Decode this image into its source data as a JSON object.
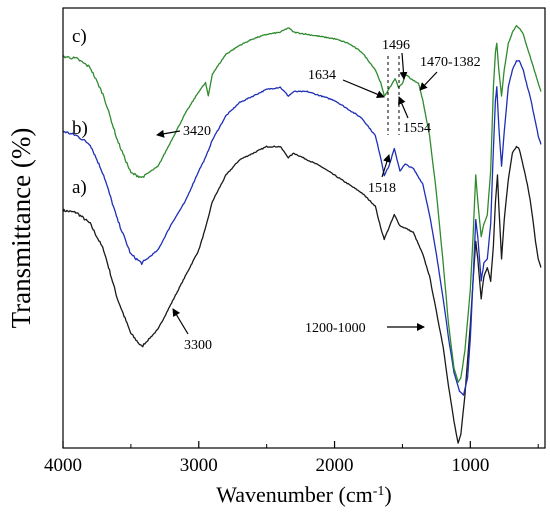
{
  "chart_data": {
    "type": "line",
    "title": "",
    "xlabel": "Wavenumber (cm",
    "xlabel_sup": "-1",
    "xlabel_close": ")",
    "ylabel": "Transmittance (%)",
    "xlim": [
      4000,
      450
    ],
    "x_reversed": true,
    "xticks": [
      {
        "value": 4000,
        "label": "4000"
      },
      {
        "value": 3000,
        "label": "3000"
      },
      {
        "value": 2000,
        "label": "2000"
      },
      {
        "value": 1000,
        "label": "1000"
      }
    ],
    "y_ticks_shown": false,
    "colors": {
      "a": "#1a1a1a",
      "b": "#1f2fb5",
      "c": "#2e8b2e"
    },
    "series": [
      {
        "name": "a)",
        "label": "a)",
        "color": "#1a1a1a",
        "points": [
          [
            4000,
            0.54
          ],
          [
            3900,
            0.535
          ],
          [
            3800,
            0.51
          ],
          [
            3700,
            0.45
          ],
          [
            3600,
            0.34
          ],
          [
            3500,
            0.26
          ],
          [
            3420,
            0.23
          ],
          [
            3300,
            0.27
          ],
          [
            3200,
            0.33
          ],
          [
            3100,
            0.39
          ],
          [
            3000,
            0.45
          ],
          [
            2950,
            0.5
          ],
          [
            2900,
            0.56
          ],
          [
            2800,
            0.62
          ],
          [
            2700,
            0.655
          ],
          [
            2600,
            0.67
          ],
          [
            2500,
            0.685
          ],
          [
            2400,
            0.685
          ],
          [
            2340,
            0.66
          ],
          [
            2300,
            0.67
          ],
          [
            2200,
            0.655
          ],
          [
            2100,
            0.64
          ],
          [
            2000,
            0.62
          ],
          [
            1900,
            0.6
          ],
          [
            1800,
            0.58
          ],
          [
            1700,
            0.55
          ],
          [
            1660,
            0.5
          ],
          [
            1634,
            0.475
          ],
          [
            1600,
            0.5
          ],
          [
            1560,
            0.53
          ],
          [
            1518,
            0.505
          ],
          [
            1480,
            0.5
          ],
          [
            1420,
            0.49
          ],
          [
            1350,
            0.44
          ],
          [
            1300,
            0.39
          ],
          [
            1250,
            0.31
          ],
          [
            1200,
            0.23
          ],
          [
            1160,
            0.14
          ],
          [
            1120,
            0.06
          ],
          [
            1090,
            0.01
          ],
          [
            1070,
            0.03
          ],
          [
            1040,
            0.12
          ],
          [
            1000,
            0.28
          ],
          [
            980,
            0.38
          ],
          [
            960,
            0.47
          ],
          [
            945,
            0.43
          ],
          [
            920,
            0.34
          ],
          [
            900,
            0.39
          ],
          [
            875,
            0.41
          ],
          [
            850,
            0.38
          ],
          [
            830,
            0.46
          ],
          [
            815,
            0.56
          ],
          [
            800,
            0.62
          ],
          [
            790,
            0.55
          ],
          [
            770,
            0.43
          ],
          [
            750,
            0.52
          ],
          [
            720,
            0.61
          ],
          [
            690,
            0.67
          ],
          [
            660,
            0.685
          ],
          [
            640,
            0.68
          ],
          [
            610,
            0.64
          ],
          [
            580,
            0.6
          ],
          [
            560,
            0.565
          ],
          [
            540,
            0.52
          ],
          [
            520,
            0.47
          ],
          [
            500,
            0.43
          ],
          [
            480,
            0.41
          ]
        ]
      },
      {
        "name": "b)",
        "label": "b)",
        "color": "#1f2fb5",
        "points": [
          [
            4000,
            0.72
          ],
          [
            3900,
            0.71
          ],
          [
            3800,
            0.69
          ],
          [
            3700,
            0.62
          ],
          [
            3600,
            0.52
          ],
          [
            3500,
            0.44
          ],
          [
            3420,
            0.42
          ],
          [
            3300,
            0.45
          ],
          [
            3200,
            0.51
          ],
          [
            3100,
            0.56
          ],
          [
            3000,
            0.63
          ],
          [
            2950,
            0.66
          ],
          [
            2900,
            0.7
          ],
          [
            2800,
            0.755
          ],
          [
            2700,
            0.785
          ],
          [
            2600,
            0.8
          ],
          [
            2500,
            0.815
          ],
          [
            2400,
            0.82
          ],
          [
            2340,
            0.8
          ],
          [
            2300,
            0.81
          ],
          [
            2200,
            0.81
          ],
          [
            2100,
            0.8
          ],
          [
            2000,
            0.79
          ],
          [
            1900,
            0.77
          ],
          [
            1800,
            0.75
          ],
          [
            1700,
            0.71
          ],
          [
            1660,
            0.66
          ],
          [
            1634,
            0.62
          ],
          [
            1600,
            0.64
          ],
          [
            1560,
            0.68
          ],
          [
            1518,
            0.63
          ],
          [
            1480,
            0.645
          ],
          [
            1420,
            0.635
          ],
          [
            1350,
            0.6
          ],
          [
            1300,
            0.53
          ],
          [
            1250,
            0.44
          ],
          [
            1200,
            0.34
          ],
          [
            1160,
            0.25
          ],
          [
            1120,
            0.17
          ],
          [
            1080,
            0.13
          ],
          [
            1050,
            0.12
          ],
          [
            1020,
            0.16
          ],
          [
            1000,
            0.25
          ],
          [
            980,
            0.38
          ],
          [
            960,
            0.52
          ],
          [
            945,
            0.48
          ],
          [
            920,
            0.38
          ],
          [
            900,
            0.42
          ],
          [
            875,
            0.43
          ],
          [
            850,
            0.51
          ],
          [
            830,
            0.68
          ],
          [
            815,
            0.79
          ],
          [
            805,
            0.82
          ],
          [
            790,
            0.73
          ],
          [
            770,
            0.64
          ],
          [
            750,
            0.72
          ],
          [
            720,
            0.82
          ],
          [
            690,
            0.86
          ],
          [
            660,
            0.88
          ],
          [
            640,
            0.88
          ],
          [
            610,
            0.86
          ],
          [
            580,
            0.82
          ],
          [
            560,
            0.8
          ],
          [
            540,
            0.77
          ],
          [
            520,
            0.74
          ],
          [
            500,
            0.71
          ],
          [
            480,
            0.69
          ]
        ]
      },
      {
        "name": "c)",
        "label": "c)",
        "color": "#2e8b2e",
        "points": [
          [
            4000,
            0.89
          ],
          [
            3900,
            0.885
          ],
          [
            3800,
            0.865
          ],
          [
            3700,
            0.8
          ],
          [
            3600,
            0.7
          ],
          [
            3500,
            0.625
          ],
          [
            3420,
            0.615
          ],
          [
            3300,
            0.64
          ],
          [
            3200,
            0.7
          ],
          [
            3100,
            0.76
          ],
          [
            3000,
            0.81
          ],
          [
            2950,
            0.83
          ],
          [
            2930,
            0.8
          ],
          [
            2900,
            0.85
          ],
          [
            2800,
            0.895
          ],
          [
            2700,
            0.915
          ],
          [
            2600,
            0.93
          ],
          [
            2500,
            0.94
          ],
          [
            2400,
            0.945
          ],
          [
            2340,
            0.955
          ],
          [
            2300,
            0.945
          ],
          [
            2200,
            0.94
          ],
          [
            2100,
            0.935
          ],
          [
            2000,
            0.93
          ],
          [
            1900,
            0.92
          ],
          [
            1800,
            0.9
          ],
          [
            1700,
            0.86
          ],
          [
            1660,
            0.83
          ],
          [
            1634,
            0.8
          ],
          [
            1600,
            0.815
          ],
          [
            1554,
            0.84
          ],
          [
            1530,
            0.82
          ],
          [
            1496,
            0.83
          ],
          [
            1480,
            0.85
          ],
          [
            1420,
            0.835
          ],
          [
            1382,
            0.83
          ],
          [
            1350,
            0.79
          ],
          [
            1300,
            0.71
          ],
          [
            1250,
            0.58
          ],
          [
            1200,
            0.42
          ],
          [
            1160,
            0.28
          ],
          [
            1120,
            0.18
          ],
          [
            1090,
            0.15
          ],
          [
            1070,
            0.16
          ],
          [
            1040,
            0.22
          ],
          [
            1000,
            0.36
          ],
          [
            980,
            0.48
          ],
          [
            960,
            0.62
          ],
          [
            945,
            0.56
          ],
          [
            920,
            0.48
          ],
          [
            900,
            0.51
          ],
          [
            875,
            0.53
          ],
          [
            850,
            0.63
          ],
          [
            830,
            0.82
          ],
          [
            815,
            0.9
          ],
          [
            805,
            0.92
          ],
          [
            790,
            0.86
          ],
          [
            770,
            0.8
          ],
          [
            750,
            0.86
          ],
          [
            720,
            0.92
          ],
          [
            690,
            0.945
          ],
          [
            660,
            0.96
          ],
          [
            640,
            0.955
          ],
          [
            610,
            0.94
          ],
          [
            580,
            0.91
          ],
          [
            560,
            0.89
          ],
          [
            540,
            0.87
          ],
          [
            520,
            0.85
          ],
          [
            500,
            0.83
          ],
          [
            480,
            0.81
          ]
        ]
      }
    ],
    "annotations": [
      {
        "text": "3420"
      },
      {
        "text": "3300"
      },
      {
        "text": "1634"
      },
      {
        "text": "1496"
      },
      {
        "text": "1470-1382"
      },
      {
        "text": "1554"
      },
      {
        "text": "1518"
      },
      {
        "text": "1200-1000"
      }
    ],
    "grid": false,
    "legend": "none"
  }
}
